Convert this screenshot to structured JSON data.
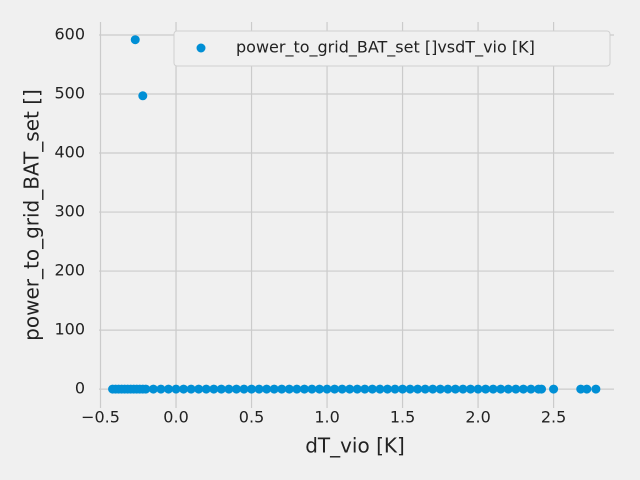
{
  "chart_data": {
    "type": "scatter",
    "x_label": "dT_vio [K]",
    "y_label": "power_to_grid_BAT_set []",
    "xlim": [
      -0.51,
      2.9
    ],
    "ylim": [
      -32,
      622
    ],
    "xticks": [
      {
        "value": -0.5,
        "label": "−0.5"
      },
      {
        "value": 0,
        "label": "0.0"
      },
      0.5,
      {
        "value": 1,
        "label": "1.0"
      },
      1.5,
      {
        "value": 2,
        "label": "2.0"
      },
      2.5
    ],
    "yticks": [
      0,
      100,
      200,
      300,
      400,
      500,
      600
    ],
    "grid": true,
    "legend": "upper right",
    "series": [
      {
        "name": "power_to_grid_BAT_set []vsdT_vio [K]",
        "color": "#008fd5",
        "x": [
          -0.42,
          -0.4,
          -0.38,
          -0.36,
          -0.34,
          -0.32,
          -0.3,
          -0.28,
          -0.26,
          -0.24,
          -0.22,
          -0.2,
          -0.15,
          -0.1,
          -0.05,
          0,
          0.05,
          0.1,
          0.15,
          0.2,
          0.25,
          0.3,
          0.35,
          0.4,
          0.45,
          0.5,
          0.55,
          0.6,
          0.65,
          0.7,
          0.75,
          0.8,
          0.85,
          0.9,
          0.95,
          1.0,
          1.05,
          1.1,
          1.15,
          1.2,
          1.25,
          1.3,
          1.35,
          1.4,
          1.45,
          1.5,
          1.55,
          1.6,
          1.65,
          1.7,
          1.75,
          1.8,
          1.85,
          1.9,
          1.95,
          2.0,
          2.05,
          2.1,
          2.15,
          2.2,
          2.25,
          2.3,
          2.35,
          2.4,
          2.42,
          2.5,
          2.68,
          2.72,
          2.78,
          -0.27,
          -0.22
        ],
        "values": [
          0,
          0,
          0,
          0,
          0,
          0,
          0,
          0,
          0,
          0,
          0,
          0,
          0,
          0,
          0,
          0,
          0,
          0,
          0,
          0,
          0,
          0,
          0,
          0,
          0,
          0,
          0,
          0,
          0,
          0,
          0,
          0,
          0,
          0,
          0,
          0,
          0,
          0,
          0,
          0,
          0,
          0,
          0,
          0,
          0,
          0,
          0,
          0,
          0,
          0,
          0,
          0,
          0,
          0,
          0,
          0,
          0,
          0,
          0,
          0,
          0,
          0,
          0,
          0,
          0,
          0,
          0,
          0,
          0,
          592,
          497
        ]
      }
    ]
  }
}
